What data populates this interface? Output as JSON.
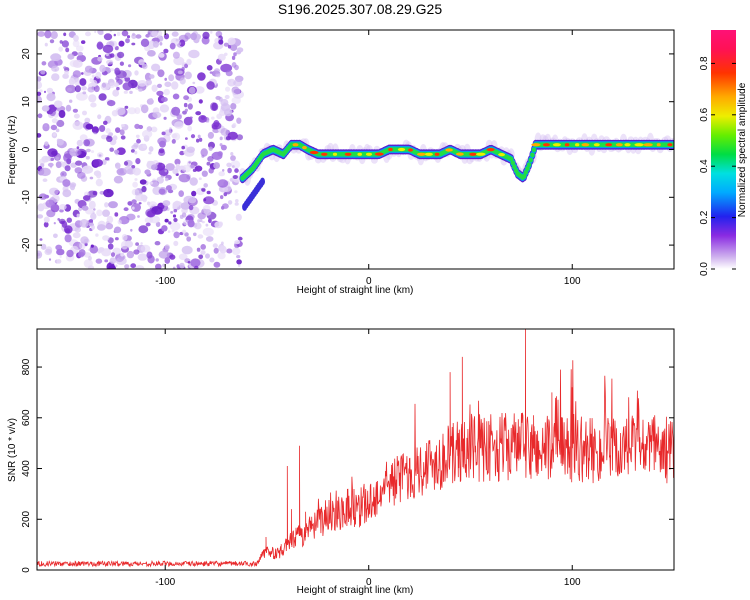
{
  "title": "S196.2025.307.08.29.G25",
  "chart_data": [
    {
      "type": "heatmap",
      "name": "spectrogram",
      "xlabel": "Height of straight line (km)",
      "ylabel": "Frequency (Hz)",
      "xlim": [
        -163,
        150
      ],
      "ylim": [
        -25,
        25
      ],
      "xticks": [
        -100,
        0,
        100
      ],
      "yticks": [
        -20,
        -10,
        0,
        10,
        20
      ],
      "noise_region_x": [
        -163,
        -62
      ],
      "track": {
        "x": [
          -62,
          -57,
          -52,
          -47,
          -42,
          -38,
          -34,
          -30,
          -25,
          -20,
          -15,
          -10,
          -5,
          0,
          5,
          10,
          15,
          20,
          25,
          30,
          35,
          40,
          45,
          50,
          55,
          60,
          65,
          70,
          73,
          76,
          79,
          82,
          85,
          90,
          95,
          100,
          105,
          110,
          115,
          120,
          125,
          130,
          135,
          140,
          145,
          150
        ],
        "y": [
          -6,
          -4,
          -1,
          0,
          -1,
          1,
          1,
          0,
          -1,
          -1,
          -1,
          -1,
          -1,
          -1,
          -1,
          0,
          0,
          0,
          -1,
          -1,
          -1,
          0,
          -1,
          -1,
          -1,
          0,
          -1,
          -2,
          -5,
          -6,
          -3,
          1,
          1,
          1,
          1,
          1,
          1,
          1,
          1,
          1,
          1,
          1,
          1,
          1,
          1,
          1
        ]
      },
      "colorbar": {
        "label": "Normalized spectral amplitude",
        "ticks": [
          0.0,
          0.2,
          0.4,
          0.6,
          0.8
        ],
        "tick_labels": [
          "0.0",
          "0.2",
          "0.4",
          "0.6",
          "0.8"
        ],
        "range": [
          0.0,
          0.93
        ]
      }
    },
    {
      "type": "line",
      "name": "snr",
      "xlabel": "Height of straight line (km)",
      "ylabel": "SNR (10 * v/v)",
      "xlim": [
        -163,
        150
      ],
      "ylim": [
        0,
        950
      ],
      "xticks": [
        -100,
        0,
        100
      ],
      "yticks": [
        0,
        200,
        400,
        600,
        800
      ],
      "color": "#e8292b",
      "trend": {
        "x": [
          -163,
          -120,
          -80,
          -55,
          -50,
          -45,
          -40,
          -35,
          -30,
          -25,
          -20,
          -10,
          0,
          10,
          20,
          30,
          40,
          50,
          60,
          70,
          80,
          90,
          100,
          110,
          120,
          130,
          140,
          150
        ],
        "y": [
          25,
          25,
          25,
          25,
          80,
          60,
          100,
          130,
          150,
          180,
          220,
          250,
          260,
          340,
          380,
          420,
          450,
          480,
          480,
          490,
          480,
          470,
          480,
          470,
          470,
          480,
          480,
          470
        ]
      },
      "spikes": {
        "x": [
          -50.5,
          -48,
          -43,
          -40,
          -38,
          -34,
          -31,
          -28,
          20,
          40,
          44,
          46,
          55,
          59,
          77,
          81,
          90,
          100
        ],
        "y": [
          130,
          75,
          80,
          410,
          240,
          490,
          230,
          210,
          440,
          780,
          540,
          840,
          500,
          550,
          950,
          610,
          700,
          720
        ]
      }
    }
  ]
}
